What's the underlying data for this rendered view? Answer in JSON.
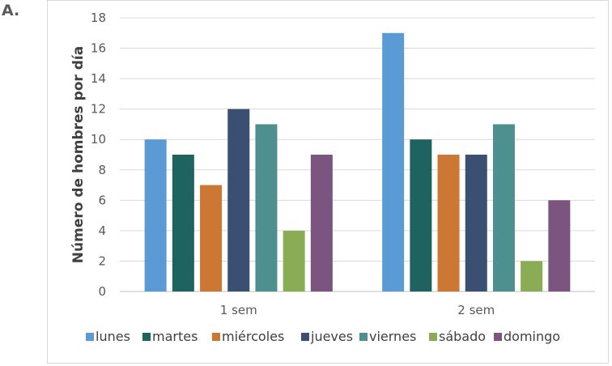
{
  "panel_label": "A.",
  "chart_data": {
    "type": "bar",
    "title": "",
    "xlabel": "",
    "ylabel": "Número de hombres por día",
    "ylim": [
      0,
      18
    ],
    "yticks": [
      0,
      2,
      4,
      6,
      8,
      10,
      12,
      14,
      16,
      18
    ],
    "grid": true,
    "legend_position": "bottom",
    "categories": [
      "1 sem",
      "2 sem"
    ],
    "series": [
      {
        "name": "lunes",
        "color": "#5b9bd5",
        "values": [
          10,
          17
        ]
      },
      {
        "name": "martes",
        "color": "#1f6360",
        "values": [
          9,
          10
        ]
      },
      {
        "name": "miércoles",
        "color": "#cc7733",
        "values": [
          7,
          9
        ]
      },
      {
        "name": "jueves",
        "color": "#3b4f72",
        "values": [
          12,
          9
        ]
      },
      {
        "name": "viernes",
        "color": "#4e8f8f",
        "values": [
          11,
          11
        ]
      },
      {
        "name": "sábado",
        "color": "#8aac55",
        "values": [
          4,
          2
        ]
      },
      {
        "name": "domingo",
        "color": "#7b5580",
        "values": [
          9,
          6
        ]
      }
    ]
  }
}
